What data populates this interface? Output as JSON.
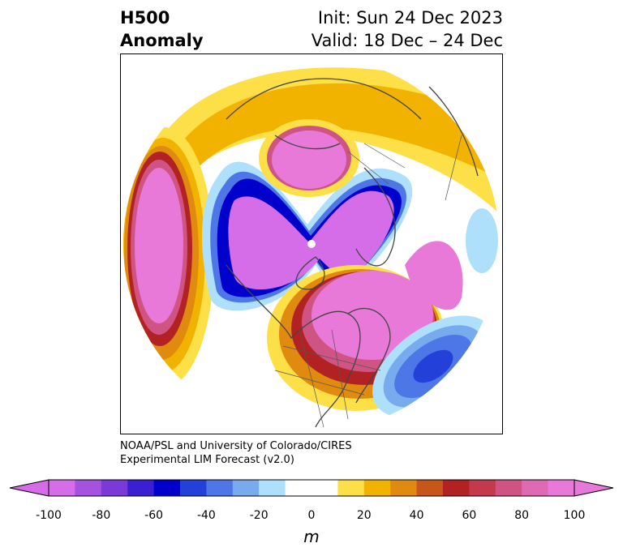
{
  "title": {
    "left_line1": "H500",
    "left_line2": "Anomaly",
    "right_line1": "Init: Sun 24 Dec 2023",
    "right_line2": "Valid: 18 Dec – 24 Dec"
  },
  "credit": {
    "line1": "NOAA/PSL and University of Colorado/CIRES",
    "line2": "Experimental LIM Forecast (v2.0)"
  },
  "colorbar": {
    "ticks": [
      "-100",
      "-80",
      "-60",
      "-40",
      "-20",
      "0",
      "20",
      "40",
      "60",
      "80",
      "100"
    ],
    "unit": "m",
    "colors": [
      "#d66de8",
      "#a552de",
      "#7a3ad8",
      "#3b1fd2",
      "#0000cc",
      "#2341d8",
      "#4d76e6",
      "#78aaee",
      "#aee0fb",
      "#ffffff",
      "#ffffff",
      "#fde047",
      "#f2b200",
      "#e08a10",
      "#c8561a",
      "#b22222",
      "#c23a4c",
      "#d05483",
      "#dd6ab2",
      "#e879d8"
    ]
  },
  "map": {
    "projection": "north polar stereographic",
    "features": [
      "coastlines",
      "country borders",
      "US state borders",
      "Canadian province borders"
    ]
  },
  "colors": {
    "strong_negative": "#d66de8",
    "strong_positive": "#e879d8",
    "neutral": "#ffffff"
  }
}
